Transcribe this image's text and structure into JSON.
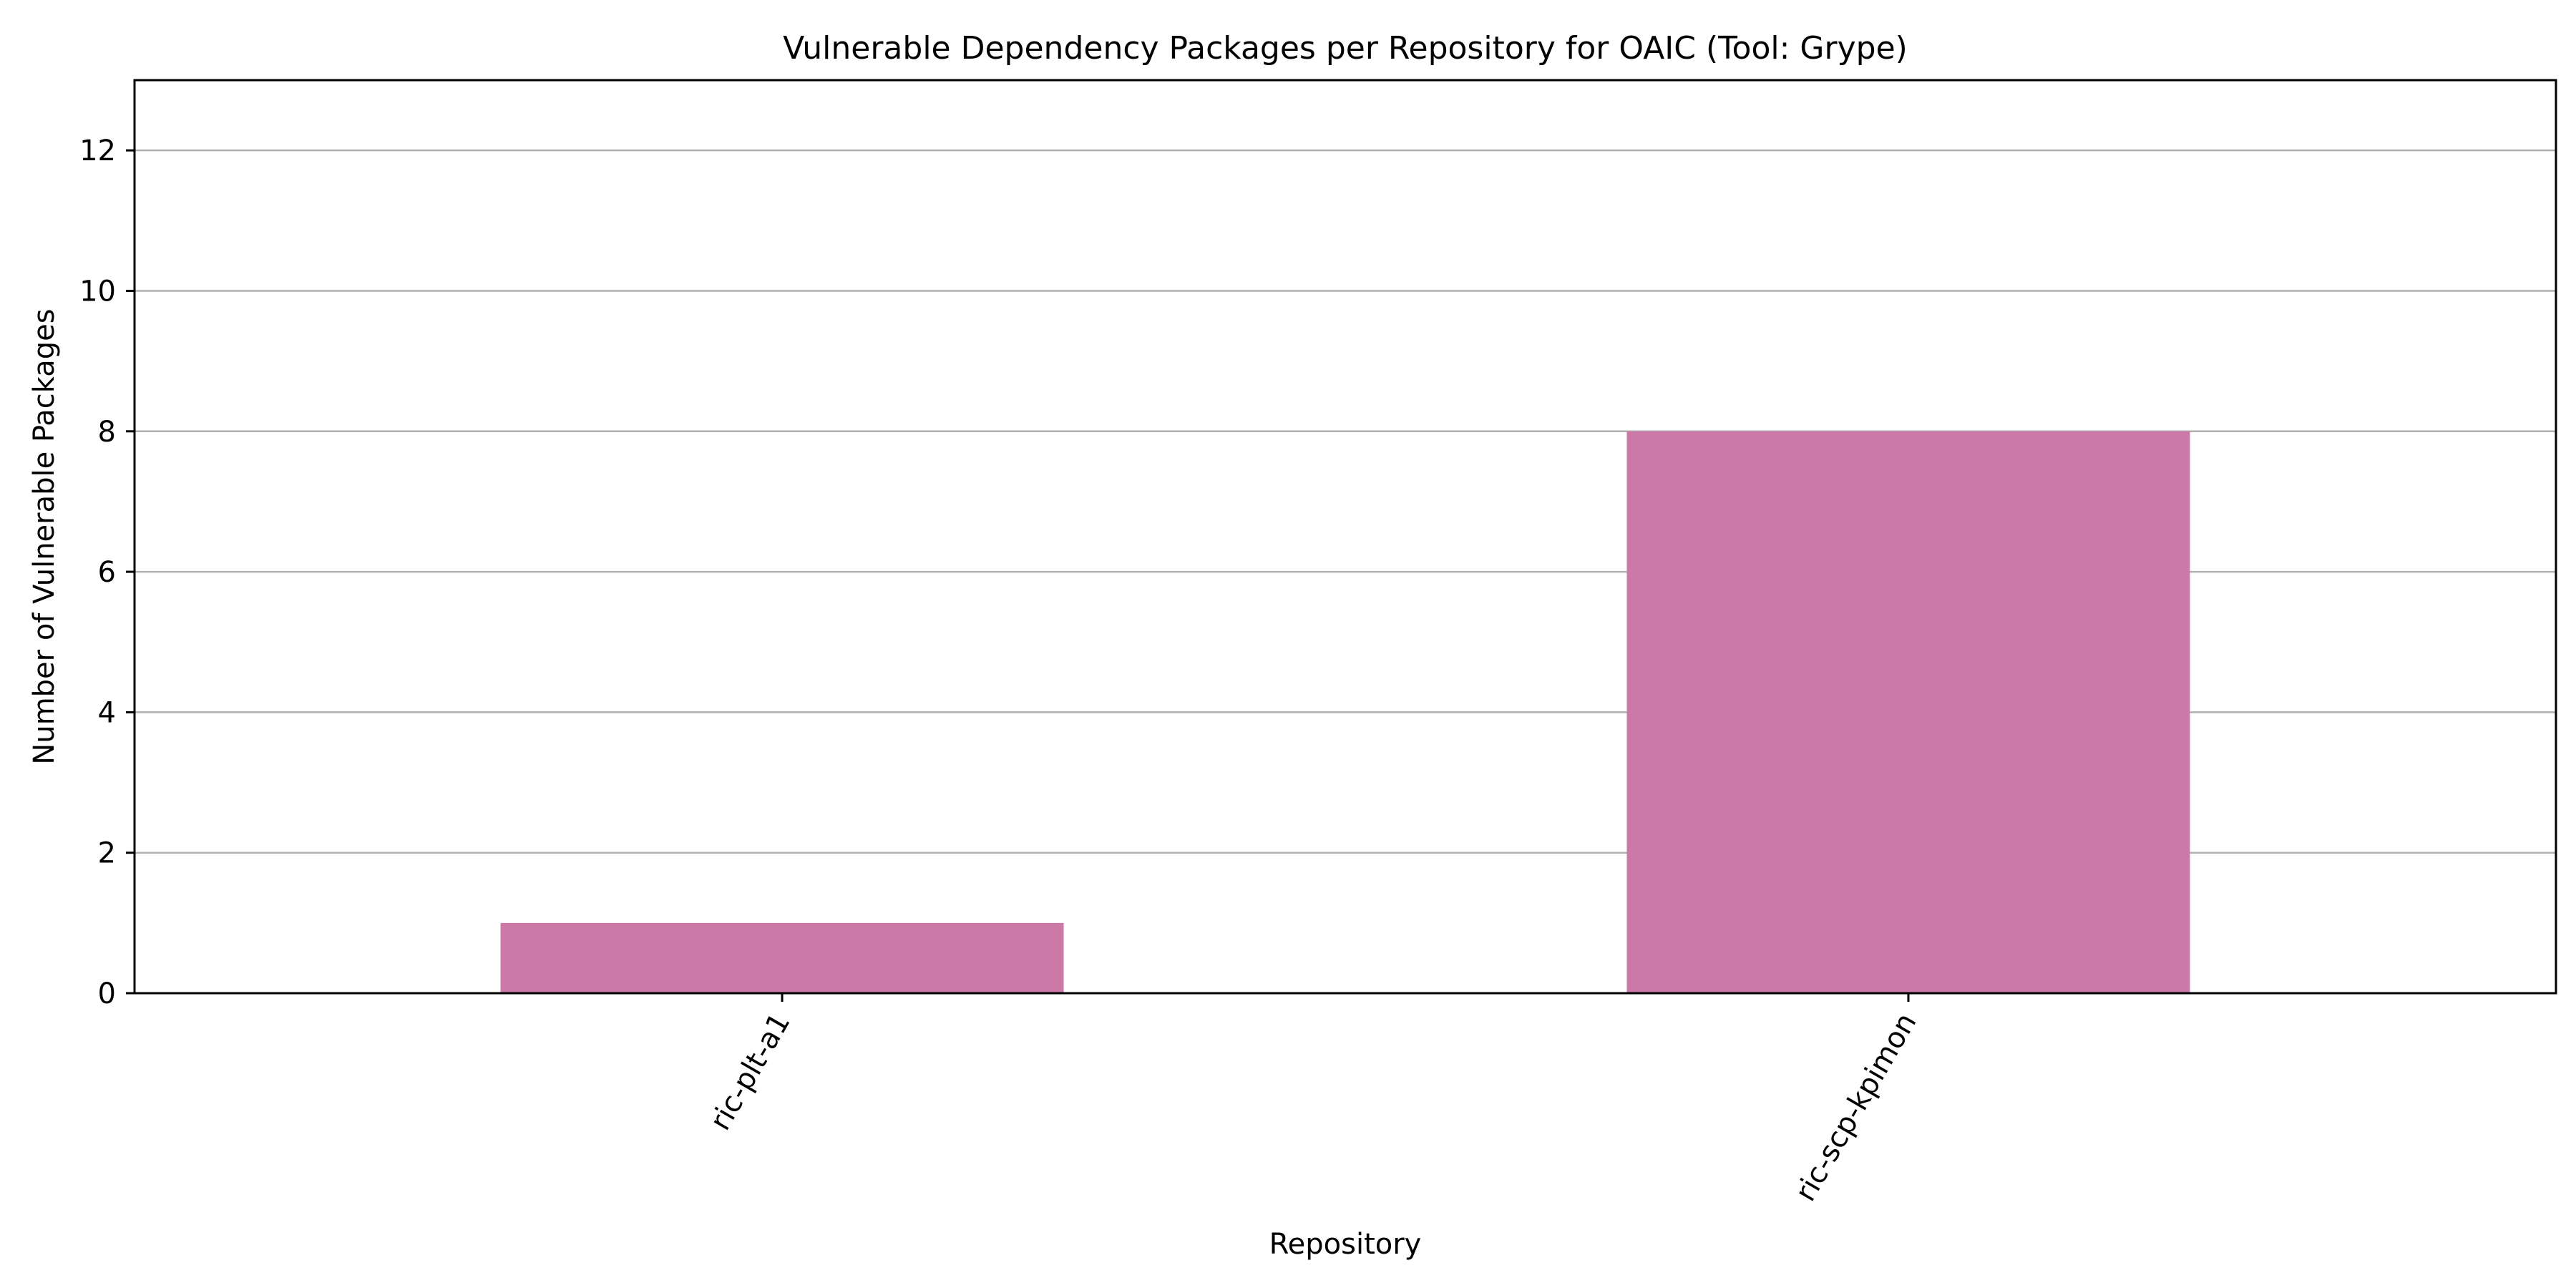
{
  "chart_data": {
    "type": "bar",
    "title": "Vulnerable Dependency Packages per Repository for OAIC (Tool: Grype)",
    "xlabel": "Repository",
    "ylabel": "Number of Vulnerable Packages",
    "categories": [
      "ric-plt-a1",
      "ric-scp-kpimon"
    ],
    "values": [
      1,
      8
    ],
    "ylim": [
      0,
      13
    ],
    "yticks": [
      0,
      2,
      4,
      6,
      8,
      10,
      12
    ],
    "grid": "y-axis",
    "bar_color": "#cc79a7",
    "x_tick_rotation_deg": -60
  }
}
